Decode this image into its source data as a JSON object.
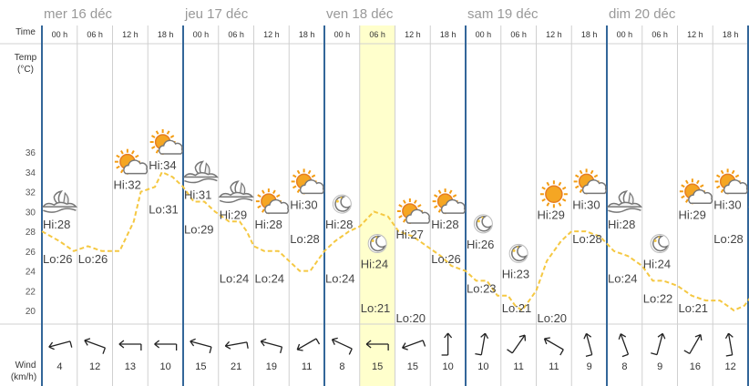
{
  "labels": {
    "time": "Time",
    "temp_line1": "Temp",
    "temp_line2": "(°C)",
    "wind_line1": "Wind",
    "wind_line2": "(km/h)"
  },
  "chart_data": {
    "type": "line",
    "title": "",
    "days": [
      "mer 16 déc",
      "jeu 17 déc",
      "ven 18 déc",
      "sam 19 déc",
      "dim 20 déc"
    ],
    "hours": [
      "00 h",
      "06 h",
      "12 h",
      "18 h"
    ],
    "current_slot": {
      "day": 2,
      "hour": 1
    },
    "ylim": [
      18,
      38
    ],
    "yticks": [
      20,
      22,
      24,
      26,
      28,
      30,
      32,
      34,
      36
    ],
    "temperature_series": [
      [
        0.0,
        28
      ],
      [
        0.5,
        27
      ],
      [
        0.9,
        26
      ],
      [
        1.3,
        26.5
      ],
      [
        1.7,
        26
      ],
      [
        2.2,
        26
      ],
      [
        2.6,
        29
      ],
      [
        2.8,
        32
      ],
      [
        3.2,
        32.5
      ],
      [
        3.4,
        34
      ],
      [
        3.7,
        33.5
      ],
      [
        4.0,
        32.5
      ],
      [
        4.3,
        31
      ],
      [
        4.6,
        31
      ],
      [
        4.9,
        30
      ],
      [
        5.3,
        29
      ],
      [
        5.6,
        29
      ],
      [
        5.8,
        28
      ],
      [
        6.0,
        26.5
      ],
      [
        6.3,
        26
      ],
      [
        6.7,
        26
      ],
      [
        7.0,
        25
      ],
      [
        7.3,
        24
      ],
      [
        7.6,
        24
      ],
      [
        8.0,
        26
      ],
      [
        8.3,
        27
      ],
      [
        8.7,
        28
      ],
      [
        9.0,
        28.5
      ],
      [
        9.4,
        30
      ],
      [
        9.8,
        29.5
      ],
      [
        10.1,
        28
      ],
      [
        10.5,
        27.5
      ],
      [
        10.9,
        26.5
      ],
      [
        11.3,
        25.5
      ],
      [
        11.6,
        24.5
      ],
      [
        12.0,
        24
      ],
      [
        12.3,
        23
      ],
      [
        12.6,
        23
      ],
      [
        12.9,
        21.5
      ],
      [
        13.2,
        21.5
      ],
      [
        13.4,
        20.5
      ],
      [
        13.6,
        20
      ],
      [
        14.0,
        22
      ],
      [
        14.3,
        25
      ],
      [
        14.7,
        27
      ],
      [
        15.0,
        28
      ],
      [
        15.4,
        28
      ],
      [
        15.8,
        27.5
      ],
      [
        16.2,
        26
      ],
      [
        16.6,
        25.5
      ],
      [
        17.0,
        24.5
      ],
      [
        17.3,
        23
      ],
      [
        17.6,
        23
      ],
      [
        18.0,
        22.5
      ],
      [
        18.4,
        21.5
      ],
      [
        18.8,
        21
      ],
      [
        19.2,
        21
      ],
      [
        19.6,
        20
      ],
      [
        19.9,
        20.5
      ],
      [
        20.2,
        22
      ],
      [
        20.6,
        25
      ],
      [
        21.0,
        28
      ],
      [
        21.4,
        29
      ],
      [
        21.7,
        30
      ],
      [
        22.2,
        30
      ],
      [
        22.6,
        29
      ],
      [
        23.0,
        28
      ],
      [
        23.4,
        28.5
      ],
      [
        23.8,
        28
      ],
      [
        24.2,
        26
      ],
      [
        24.6,
        25
      ],
      [
        24.9,
        24
      ],
      [
        25.3,
        23
      ],
      [
        25.6,
        22
      ],
      [
        26.0,
        22
      ],
      [
        26.3,
        21.5
      ],
      [
        26.7,
        21
      ],
      [
        27.0,
        22
      ],
      [
        27.4,
        25
      ],
      [
        27.8,
        27
      ],
      [
        28.2,
        29
      ],
      [
        28.6,
        30
      ],
      [
        29.0,
        30
      ],
      [
        29.4,
        29
      ],
      [
        29.8,
        28
      ],
      [
        30.2,
        27.5
      ],
      [
        30.6,
        26
      ],
      [
        31.0,
        25.5
      ],
      [
        31.4,
        24.5
      ],
      [
        31.8,
        24
      ],
      [
        32.0,
        24
      ]
    ],
    "annotations": [
      {
        "slot": 0,
        "hi": "Hi:28",
        "hi_value": 28,
        "lo": "Lo:26",
        "lo_value": 26,
        "icon": "night-cloud-icon"
      },
      {
        "slot": 1,
        "hi": "",
        "hi_value": 0,
        "lo": "Lo:26",
        "lo_value": 26,
        "icon": ""
      },
      {
        "slot": 2,
        "hi": "Hi:32",
        "hi_value": 32,
        "lo": "",
        "lo_value": 0,
        "icon": "sun-cloud-icon"
      },
      {
        "slot": 3,
        "hi": "Hi:34",
        "hi_value": 34,
        "lo": "Lo:31",
        "lo_value": 31,
        "icon": "sun-cloud-icon"
      },
      {
        "slot": 4,
        "hi": "Hi:31",
        "hi_value": 31,
        "lo": "Lo:29",
        "lo_value": 29,
        "icon": "night-cloud-icon"
      },
      {
        "slot": 5,
        "hi": "Hi:29",
        "hi_value": 29,
        "lo": "Lo:24",
        "lo_value": 24,
        "icon": "night-cloud-icon"
      },
      {
        "slot": 6,
        "hi": "Hi:28",
        "hi_value": 28,
        "lo": "Lo:24",
        "lo_value": 24,
        "icon": "sun-cloud-icon"
      },
      {
        "slot": 7,
        "hi": "Hi:30",
        "hi_value": 30,
        "lo": "Lo:28",
        "lo_value": 28,
        "icon": "sun-cloud-icon"
      },
      {
        "slot": 8,
        "hi": "Hi:28",
        "hi_value": 28,
        "lo": "Lo:24",
        "lo_value": 24,
        "icon": "moon-icon"
      },
      {
        "slot": 9,
        "hi": "Hi:24",
        "hi_value": 24,
        "lo": "Lo:21",
        "lo_value": 21,
        "icon": "moon-icon"
      },
      {
        "slot": 10,
        "hi": "Hi:27",
        "hi_value": 27,
        "lo": "Lo:20",
        "lo_value": 20,
        "icon": "sun-cloud-icon"
      },
      {
        "slot": 11,
        "hi": "Hi:28",
        "hi_value": 28,
        "lo": "Lo:26",
        "lo_value": 26,
        "icon": "sun-cloud-icon"
      },
      {
        "slot": 12,
        "hi": "Hi:26",
        "hi_value": 26,
        "lo": "Lo:23",
        "lo_value": 23,
        "icon": "moon-icon"
      },
      {
        "slot": 13,
        "hi": "Hi:23",
        "hi_value": 23,
        "lo": "Lo:21",
        "lo_value": 21,
        "icon": "moon-icon"
      },
      {
        "slot": 14,
        "hi": "Hi:29",
        "hi_value": 29,
        "lo": "Lo:20",
        "lo_value": 20,
        "icon": "sun-icon"
      },
      {
        "slot": 15,
        "hi": "Hi:30",
        "hi_value": 30,
        "lo": "Lo:28",
        "lo_value": 28,
        "icon": "sun-cloud-icon"
      },
      {
        "slot": 16,
        "hi": "Hi:28",
        "hi_value": 28,
        "lo": "Lo:24",
        "lo_value": 24,
        "icon": "night-cloud-icon"
      },
      {
        "slot": 17,
        "hi": "Hi:24",
        "hi_value": 24,
        "lo": "Lo:22",
        "lo_value": 22,
        "icon": "moon-icon"
      },
      {
        "slot": 18,
        "hi": "Hi:29",
        "hi_value": 29,
        "lo": "Lo:21",
        "lo_value": 21,
        "icon": "sun-cloud-icon"
      },
      {
        "slot": 19,
        "hi": "Hi:30",
        "hi_value": 30,
        "lo": "Lo:28",
        "lo_value": 28,
        "icon": "sun-cloud-icon"
      },
      {
        "slot": 20,
        "hi": "Hi:28",
        "hi_value": 28,
        "lo": "Lo:24",
        "lo_value": 24,
        "icon": "night-cloud-icon"
      }
    ],
    "wind": [
      {
        "speed": "4",
        "direction_deg": 75
      },
      {
        "speed": "12",
        "direction_deg": 110
      },
      {
        "speed": "13",
        "direction_deg": 90
      },
      {
        "speed": "10",
        "direction_deg": 90
      },
      {
        "speed": "15",
        "direction_deg": 105
      },
      {
        "speed": "21",
        "direction_deg": 80
      },
      {
        "speed": "19",
        "direction_deg": 105
      },
      {
        "speed": "11",
        "direction_deg": 60
      },
      {
        "speed": "8",
        "direction_deg": 115
      },
      {
        "speed": "15",
        "direction_deg": 90
      },
      {
        "speed": "15",
        "direction_deg": 70
      },
      {
        "speed": "10",
        "direction_deg": 180
      },
      {
        "speed": "10",
        "direction_deg": 190
      },
      {
        "speed": "11",
        "direction_deg": 215
      },
      {
        "speed": "11",
        "direction_deg": 120
      },
      {
        "speed": "9",
        "direction_deg": 165
      },
      {
        "speed": "8",
        "direction_deg": 160
      },
      {
        "speed": "9",
        "direction_deg": 195
      },
      {
        "speed": "16",
        "direction_deg": 210
      },
      {
        "speed": "12",
        "direction_deg": 170
      }
    ],
    "colors": {
      "line": "#f5c842",
      "day_border": "#336699",
      "grid": "#d0d0d0",
      "highlight": "#ffffcc",
      "tick_text": "#555555",
      "label_text": "#444444"
    }
  }
}
